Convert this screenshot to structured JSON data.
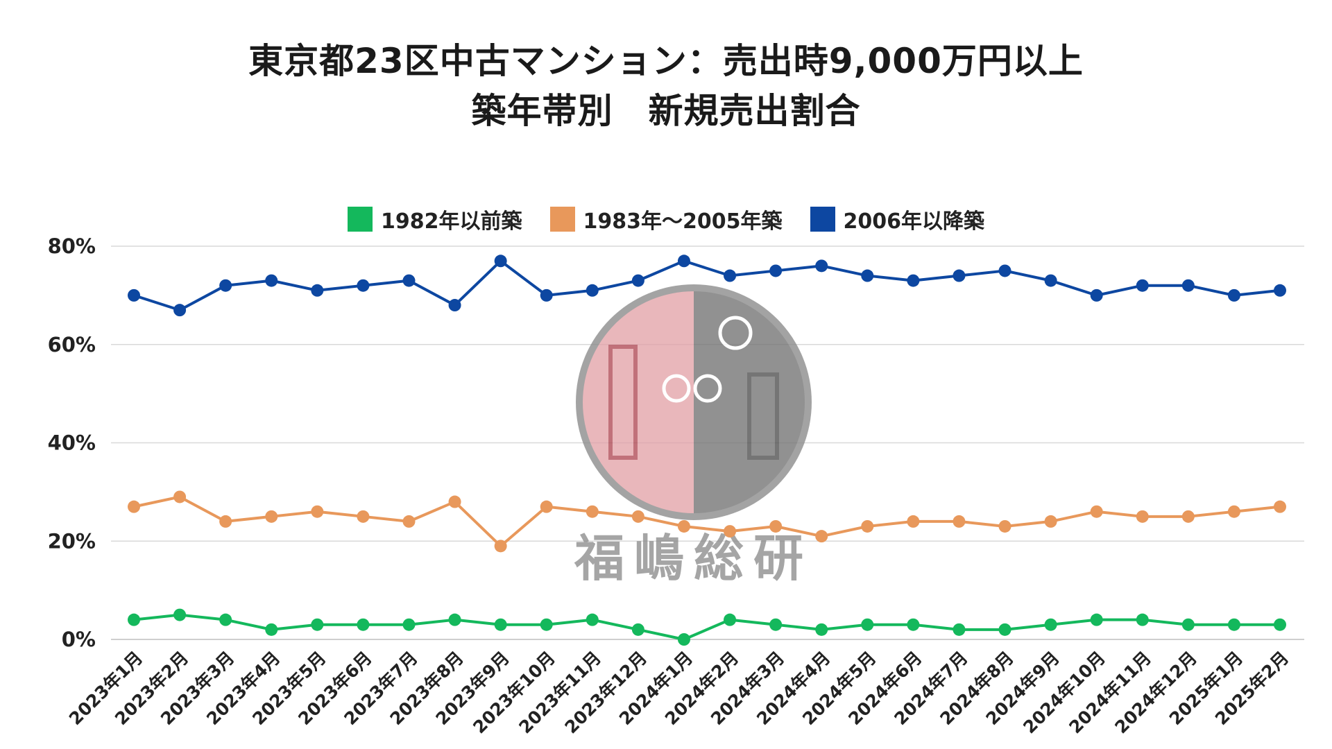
{
  "title_lines": [
    "東京都23区中古マンション：売出時9,000万円以上",
    "築年帯別　新規売出割合"
  ],
  "watermark_text": "福嶋総研",
  "legend": [
    {
      "label": "1982年以前築",
      "color": "#14b85c"
    },
    {
      "label": "1983年～2005年築",
      "color": "#e8985b"
    },
    {
      "label": "2006年以降築",
      "color": "#0d47a1"
    }
  ],
  "chart_data": {
    "type": "line",
    "title": "東京都23区中古マンション：売出時9,000万円以上 築年帯別　新規売出割合",
    "categories": [
      "2023年1月",
      "2023年2月",
      "2023年3月",
      "2023年4月",
      "2023年5月",
      "2023年6月",
      "2023年7月",
      "2023年8月",
      "2023年9月",
      "2023年10月",
      "2023年11月",
      "2023年12月",
      "2024年1月",
      "2024年2月",
      "2024年3月",
      "2024年4月",
      "2024年5月",
      "2024年6月",
      "2024年7月",
      "2024年8月",
      "2024年9月",
      "2024年10月",
      "2024年11月",
      "2024年12月",
      "2025年1月",
      "2025年2月"
    ],
    "series": [
      {
        "name": "1982年以前築",
        "color": "#14b85c",
        "values": [
          4,
          5,
          4,
          2,
          3,
          3,
          3,
          4,
          3,
          3,
          4,
          2,
          0,
          4,
          3,
          2,
          3,
          3,
          2,
          2,
          3,
          4,
          4,
          3,
          3,
          3
        ]
      },
      {
        "name": "1983年～2005年築",
        "color": "#e8985b",
        "values": [
          27,
          29,
          24,
          25,
          26,
          25,
          24,
          28,
          19,
          27,
          26,
          25,
          23,
          22,
          23,
          21,
          23,
          24,
          24,
          23,
          24,
          26,
          25,
          25,
          26,
          27
        ]
      },
      {
        "name": "2006年以降築",
        "color": "#0d47a1",
        "values": [
          70,
          67,
          72,
          73,
          71,
          72,
          73,
          68,
          77,
          70,
          71,
          73,
          77,
          74,
          75,
          76,
          74,
          73,
          74,
          75,
          73,
          70,
          72,
          72,
          70,
          71
        ]
      }
    ],
    "y_ticks": [
      "0%",
      "20%",
      "40%",
      "60%",
      "80%"
    ],
    "ylim": [
      0,
      80
    ],
    "xlabel": "",
    "ylabel": "",
    "grid": true,
    "legend_position": "top-center"
  }
}
